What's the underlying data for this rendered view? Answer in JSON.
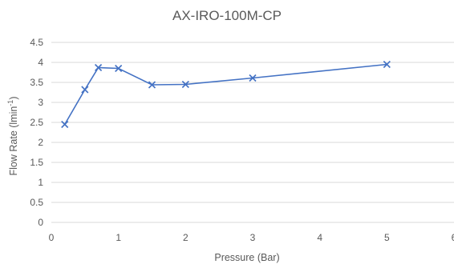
{
  "chart_data": {
    "type": "scatter",
    "title": "AX-IRO-100M-CP",
    "xlabel": "Pressure (Bar)",
    "ylabel_main": "Flow Rate (lmin",
    "ylabel_sup": "-1",
    "ylabel_end": ")",
    "xlim": [
      0,
      6
    ],
    "ylim": [
      0,
      4.5
    ],
    "x_ticks": [
      0,
      1,
      2,
      3,
      4,
      5,
      6
    ],
    "y_ticks": [
      0,
      0.5,
      1,
      1.5,
      2,
      2.5,
      3,
      3.5,
      4,
      4.5
    ],
    "grid": true,
    "marker": "x",
    "series_color": "#4472c4",
    "x": [
      0.2,
      0.5,
      0.7,
      1.0,
      1.5,
      2.0,
      3.0,
      5.0
    ],
    "y": [
      2.45,
      3.32,
      3.87,
      3.85,
      3.44,
      3.45,
      3.61,
      3.95
    ]
  }
}
